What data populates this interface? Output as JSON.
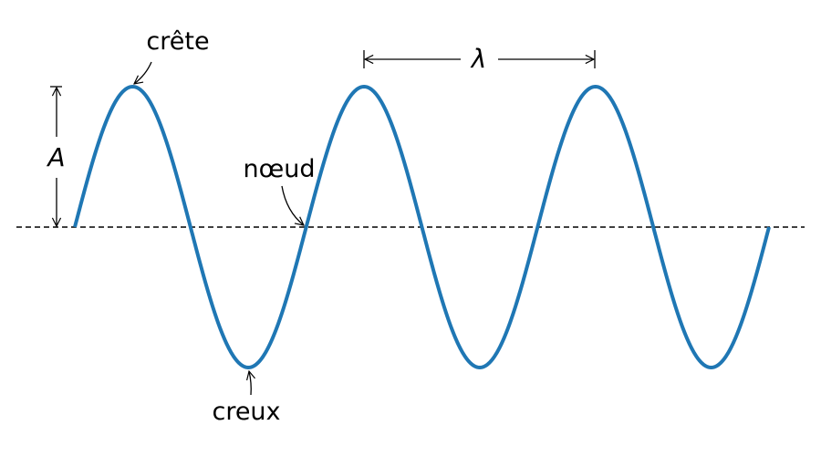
{
  "labels": {
    "crest": "crête",
    "trough": "creux",
    "node": "nœud",
    "amplitude": "A",
    "wavelength": "λ"
  },
  "colors": {
    "wave": "#1f77b4",
    "axis": "#000000",
    "annotation": "#000000"
  }
}
